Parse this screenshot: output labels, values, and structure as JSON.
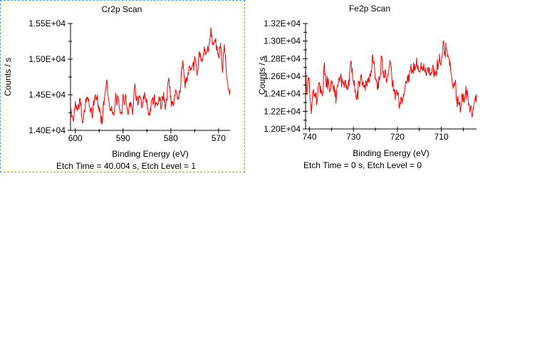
{
  "app": {
    "background": "#ffffff"
  },
  "panels": [
    {
      "name": "cr2p-panel",
      "selected": true,
      "background": "#ffffe0",
      "border_color": "#4da3ff"
    },
    {
      "name": "fe2p-panel",
      "selected": false,
      "background": "#ffffff",
      "border_color": null
    }
  ],
  "chart_data": [
    {
      "type": "line",
      "title": "Cr2p Scan",
      "xlabel": "Binding Energy (eV)",
      "ylabel": "Counts / s",
      "annotation": "Etch Time = 40.004 s, Etch Level = 1",
      "background": "#ffffff",
      "grid": false,
      "legend": null,
      "x_axis": {
        "range": [
          601,
          567.6
        ],
        "reversed": true,
        "major_ticks": [
          600,
          590,
          580,
          570
        ],
        "tick_labels": [
          "600",
          "590",
          "580",
          "570"
        ],
        "minor_ticks": [
          595,
          585,
          575
        ]
      },
      "y_axis": {
        "range": [
          14000,
          15500
        ],
        "major_ticks": [
          14000,
          14500,
          15000,
          15500
        ],
        "tick_labels": [
          "1.40E+04",
          "1.45E+04",
          "1.50E+04",
          "1.55E+04"
        ],
        "minor_ticks": [
          14250,
          14750,
          15250
        ]
      },
      "series": [
        {
          "name": "Cr2p",
          "color": "#ff0000",
          "noise_amplitude": 110,
          "n_points": 335,
          "seed": 42,
          "envelope": [
            [
              601,
              14280
            ],
            [
              600.4,
              14120
            ],
            [
              600,
              14420
            ],
            [
              599.5,
              14300
            ],
            [
              599,
              14460
            ],
            [
              598.4,
              14070
            ],
            [
              598,
              14350
            ],
            [
              597.5,
              14460
            ],
            [
              597,
              14330
            ],
            [
              596.5,
              14190
            ],
            [
              596,
              14450
            ],
            [
              595.5,
              14480
            ],
            [
              595,
              14290
            ],
            [
              594.4,
              14130
            ],
            [
              594,
              14420
            ],
            [
              593.4,
              14700
            ],
            [
              593,
              14430
            ],
            [
              592.5,
              14290
            ],
            [
              592,
              14190
            ],
            [
              591.5,
              14450
            ],
            [
              591,
              14400
            ],
            [
              590.5,
              14190
            ],
            [
              590,
              14420
            ],
            [
              589.5,
              14470
            ],
            [
              589,
              14250
            ],
            [
              588.5,
              14420
            ],
            [
              588,
              14280
            ],
            [
              587.5,
              14620
            ],
            [
              587,
              14400
            ],
            [
              586.5,
              14460
            ],
            [
              586,
              14300
            ],
            [
              585.5,
              14480
            ],
            [
              585,
              14370
            ],
            [
              584.5,
              14160
            ],
            [
              584,
              14420
            ],
            [
              583.5,
              14470
            ],
            [
              583,
              14330
            ],
            [
              582.5,
              14450
            ],
            [
              582,
              14380
            ],
            [
              581.5,
              14480
            ],
            [
              581,
              14300
            ],
            [
              580.5,
              14780
            ],
            [
              580,
              14420
            ],
            [
              579.5,
              14360
            ],
            [
              579,
              14560
            ],
            [
              578.5,
              14440
            ],
            [
              578,
              14600
            ],
            [
              577.5,
              14980
            ],
            [
              577,
              14640
            ],
            [
              576.5,
              14750
            ],
            [
              576,
              14900
            ],
            [
              575.5,
              14800
            ],
            [
              575,
              15000
            ],
            [
              574.5,
              14820
            ],
            [
              574,
              15080
            ],
            [
              573.5,
              14940
            ],
            [
              573,
              15130
            ],
            [
              572.5,
              15060
            ],
            [
              572,
              15230
            ],
            [
              571.6,
              15420
            ],
            [
              571.2,
              15180
            ],
            [
              570.8,
              15280
            ],
            [
              570.4,
              15120
            ],
            [
              570,
              15020
            ],
            [
              569.6,
              15200
            ],
            [
              569.2,
              14820
            ],
            [
              568.8,
              15230
            ],
            [
              568.4,
              14780
            ],
            [
              568,
              14620
            ],
            [
              567.6,
              14580
            ]
          ]
        }
      ]
    },
    {
      "type": "line",
      "title": "Fe2p Scan",
      "xlabel": "Binding Energy (eV)",
      "ylabel": "Counts / s",
      "annotation": "Etch Time = 0 s, Etch Level = 0",
      "background": "#ffffff",
      "grid": false,
      "legend": null,
      "x_axis": {
        "range": [
          740.9,
          702
        ],
        "reversed": true,
        "major_ticks": [
          740,
          730,
          720,
          710
        ],
        "tick_labels": [
          "740",
          "730",
          "720",
          "710"
        ],
        "minor_ticks": [
          735,
          725,
          715,
          705
        ]
      },
      "y_axis": {
        "range": [
          12000,
          13200
        ],
        "major_ticks": [
          12000,
          12200,
          12400,
          12600,
          12800,
          13000,
          13200
        ],
        "tick_labels": [
          "1.20E+04",
          "1.22E+04",
          "1.24E+04",
          "1.26E+04",
          "1.28E+04",
          "1.30E+04",
          "1.32E+04"
        ],
        "minor_ticks": [
          12100,
          12300,
          12500,
          12700,
          12900,
          13100
        ]
      },
      "series": [
        {
          "name": "Fe2p",
          "color": "#ff0000",
          "noise_amplitude": 105,
          "n_points": 390,
          "seed": 1337,
          "envelope": [
            [
              740.9,
              12700
            ],
            [
              740.6,
              12380
            ],
            [
              740.3,
              12600
            ],
            [
              740,
              12500
            ],
            [
              739.6,
              12180
            ],
            [
              739.2,
              12480
            ],
            [
              738.8,
              12420
            ],
            [
              738.4,
              12300
            ],
            [
              738,
              12550
            ],
            [
              737.5,
              12480
            ],
            [
              737,
              12350
            ],
            [
              736.6,
              12750
            ],
            [
              736.2,
              12500
            ],
            [
              735.8,
              12560
            ],
            [
              735.4,
              12440
            ],
            [
              735,
              12550
            ],
            [
              734.5,
              12460
            ],
            [
              734,
              12350
            ],
            [
              733.5,
              12560
            ],
            [
              733,
              12600
            ],
            [
              732.5,
              12500
            ],
            [
              732,
              12550
            ],
            [
              731.5,
              12480
            ],
            [
              731,
              12530
            ],
            [
              730.6,
              12790
            ],
            [
              730.2,
              12550
            ],
            [
              729.8,
              12500
            ],
            [
              729.4,
              12320
            ],
            [
              729,
              12420
            ],
            [
              728.5,
              12560
            ],
            [
              728,
              12580
            ],
            [
              727.5,
              12480
            ],
            [
              727,
              12510
            ],
            [
              726.5,
              12570
            ],
            [
              726,
              12620
            ],
            [
              725.6,
              12900
            ],
            [
              725.2,
              12620
            ],
            [
              724.8,
              12560
            ],
            [
              724.4,
              12500
            ],
            [
              724,
              12560
            ],
            [
              723.6,
              12850
            ],
            [
              723.2,
              12620
            ],
            [
              722.8,
              12660
            ],
            [
              722.4,
              12570
            ],
            [
              722,
              12640
            ],
            [
              721.6,
              12790
            ],
            [
              721.2,
              12530
            ],
            [
              720.8,
              12440
            ],
            [
              720.4,
              12350
            ],
            [
              720,
              12420
            ],
            [
              719.6,
              12230
            ],
            [
              719.2,
              12400
            ],
            [
              718.8,
              12350
            ],
            [
              718.4,
              12430
            ],
            [
              718,
              12500
            ],
            [
              717.5,
              12610
            ],
            [
              717,
              12650
            ],
            [
              716.5,
              12690
            ],
            [
              716,
              12700
            ],
            [
              715.5,
              12740
            ],
            [
              715,
              12640
            ],
            [
              714.5,
              12690
            ],
            [
              714,
              12700
            ],
            [
              713.5,
              12600
            ],
            [
              713,
              12690
            ],
            [
              712.5,
              12640
            ],
            [
              712,
              12740
            ],
            [
              711.5,
              12600
            ],
            [
              711,
              12690
            ],
            [
              710.6,
              12740
            ],
            [
              710.2,
              12780
            ],
            [
              709.8,
              12850
            ],
            [
              709.5,
              13020
            ],
            [
              709.2,
              12890
            ],
            [
              708.9,
              12940
            ],
            [
              708.6,
              12850
            ],
            [
              708.3,
              12760
            ],
            [
              708,
              12700
            ],
            [
              707.6,
              12500
            ],
            [
              707.2,
              12460
            ],
            [
              706.8,
              12520
            ],
            [
              706.4,
              12300
            ],
            [
              706,
              12350
            ],
            [
              705.6,
              12220
            ],
            [
              705.2,
              12400
            ],
            [
              704.8,
              12300
            ],
            [
              704.4,
              12400
            ],
            [
              704,
              12390
            ],
            [
              703.6,
              12150
            ],
            [
              703.2,
              12280
            ],
            [
              702.9,
              12080
            ],
            [
              702.6,
              12300
            ],
            [
              702.3,
              12350
            ],
            [
              702,
              12420
            ]
          ]
        }
      ]
    }
  ]
}
